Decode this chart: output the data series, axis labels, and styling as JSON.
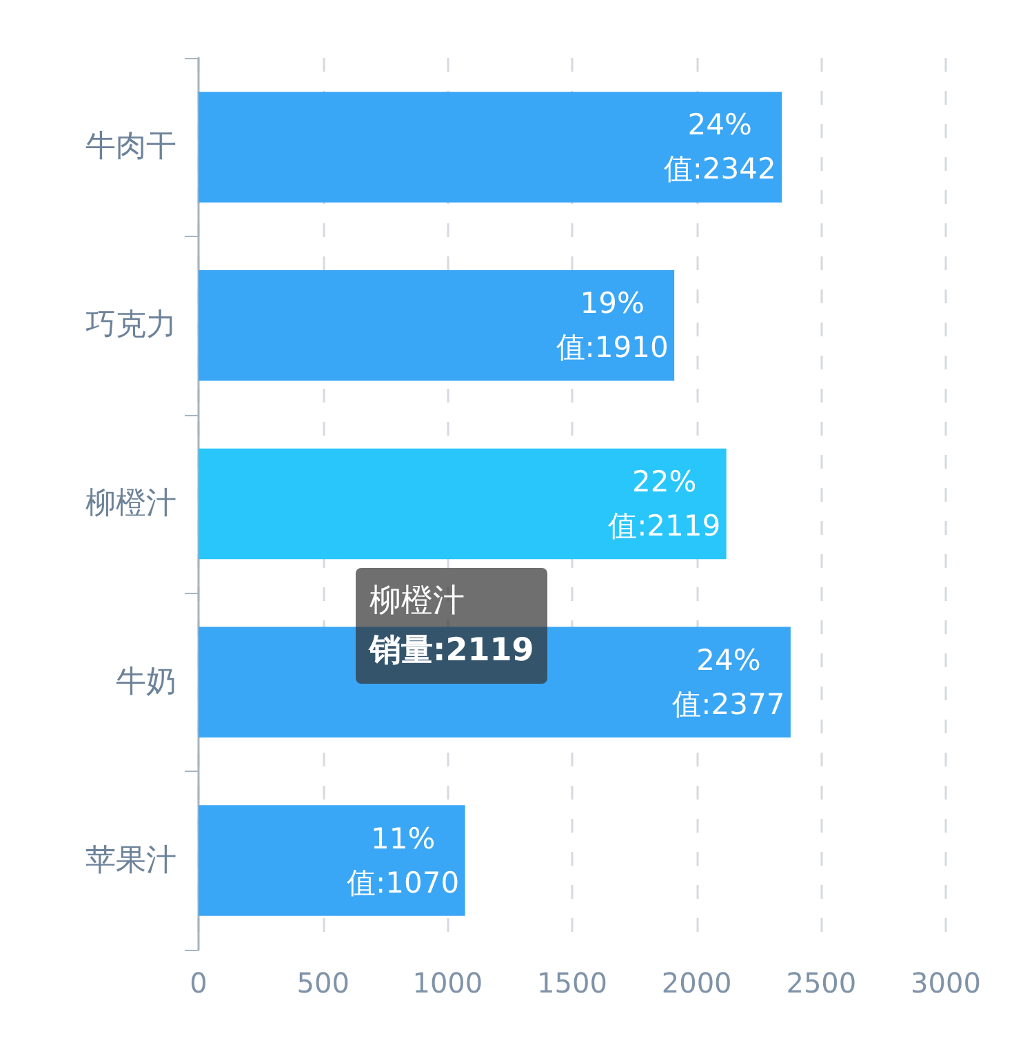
{
  "chart_data": {
    "type": "bar",
    "orientation": "horizontal",
    "categories": [
      "牛肉干",
      "巧克力",
      "柳橙汁",
      "牛奶",
      "苹果汁"
    ],
    "values": [
      2342,
      1910,
      2119,
      2377,
      1070
    ],
    "colors": [
      "#3aa6f6",
      "#3aa6f6",
      "#29c6fc",
      "#3aa6f6",
      "#3aa6f6"
    ],
    "value_labels": [
      "24%\n值:2342",
      "19%\n值:1910",
      "22%\n值:2119",
      "24%\n值:2377",
      "11%\n值:1070"
    ],
    "xlim": [
      0,
      3000
    ],
    "xticks": [
      0,
      500,
      1000,
      1500,
      2000,
      2500,
      3000
    ],
    "grid": "x",
    "annotations": [
      "柳橙汁",
      "销量:2119"
    ]
  }
}
